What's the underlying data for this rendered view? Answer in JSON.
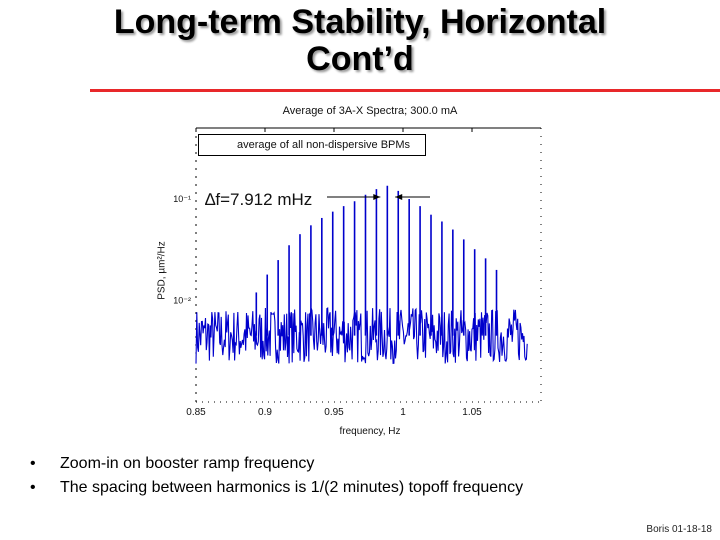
{
  "slide": {
    "title_line1": "Long-term Stability, Horizontal",
    "title_line2": "Cont’d",
    "bullets": [
      "Zoom-in on booster ramp frequency",
      "The spacing between harmonics is 1/(2 minutes) topoff frequency"
    ],
    "footer": "Boris 01-18-18",
    "accent_color": "#e8282a"
  },
  "figure": {
    "title": "Average of 3A-X Spectra; 300.0 mA",
    "annotation_box": "average of all non-dispersive BPMs",
    "delta_label": "∆f=7.912 mHz",
    "xlabel": "frequency, Hz",
    "ylabel": "PSD, µm²/Hz"
  },
  "chart_data": {
    "type": "line",
    "title": "Average of 3A-X Spectra; 300.0 mA",
    "xlabel": "frequency, Hz",
    "ylabel": "PSD, µm²/Hz",
    "xlim": [
      0.85,
      1.1
    ],
    "x_ticks": [
      "0.85",
      "0.9",
      "0.95",
      "1",
      "1.05"
    ],
    "y_ticks": [
      "10⁻¹",
      "10⁻²"
    ],
    "ylim": [
      0.001,
      0.5
    ],
    "y_scale": "log",
    "series_color": "#0000cc",
    "noise_floor": 0.0045,
    "harmonics": {
      "center": 0.985,
      "spacing": 0.007912,
      "peaks": [
        0.012,
        0.018,
        0.025,
        0.035,
        0.045,
        0.055,
        0.065,
        0.075,
        0.085,
        0.095,
        0.11,
        0.125,
        0.135,
        0.12,
        0.1,
        0.085,
        0.07,
        0.06,
        0.05,
        0.04,
        0.032,
        0.026,
        0.02
      ],
      "first_frequency": 0.8937
    }
  }
}
